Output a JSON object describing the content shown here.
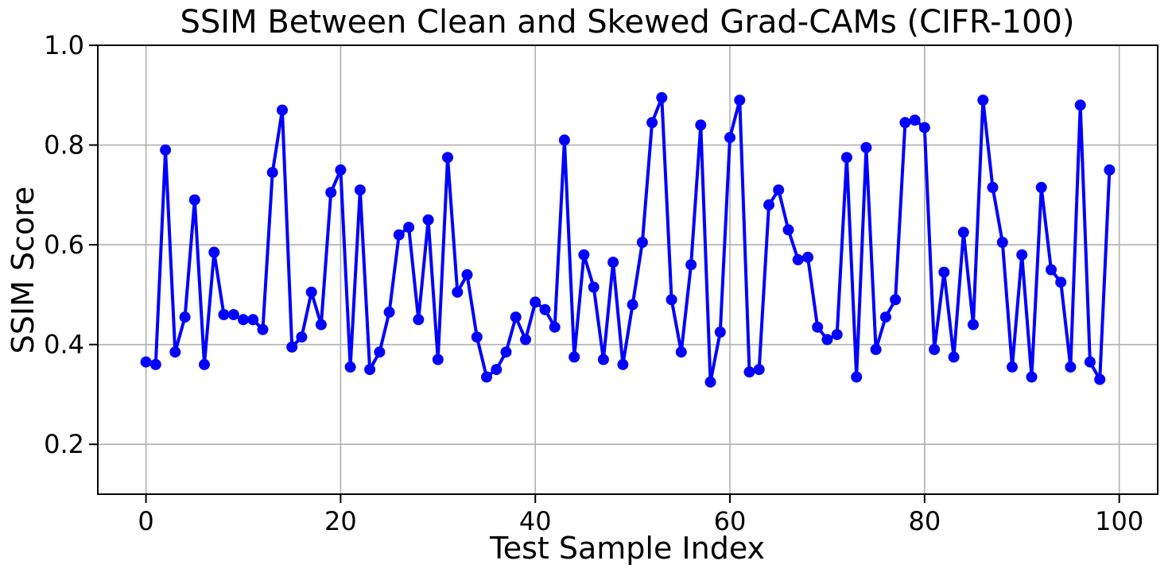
{
  "chart_data": {
    "type": "line",
    "title": "SSIM Between Clean and Skewed Grad-CAMs (CIFR-100)",
    "xlabel": "Test Sample Index",
    "ylabel": "SSIM Score",
    "x": [
      0,
      1,
      2,
      3,
      4,
      5,
      6,
      7,
      8,
      9,
      10,
      11,
      12,
      13,
      14,
      15,
      16,
      17,
      18,
      19,
      20,
      21,
      22,
      23,
      24,
      25,
      26,
      27,
      28,
      29,
      30,
      31,
      32,
      33,
      34,
      35,
      36,
      37,
      38,
      39,
      40,
      41,
      42,
      43,
      44,
      45,
      46,
      47,
      48,
      49,
      50,
      51,
      52,
      53,
      54,
      55,
      56,
      57,
      58,
      59,
      60,
      61,
      62,
      63,
      64,
      65,
      66,
      67,
      68,
      69,
      70,
      71,
      72,
      73,
      74,
      75,
      76,
      77,
      78,
      79,
      80,
      81,
      82,
      83,
      84,
      85,
      86,
      87,
      88,
      89,
      90,
      91,
      92,
      93,
      94,
      95,
      96,
      97,
      98,
      99
    ],
    "values": [
      0.365,
      0.36,
      0.79,
      0.385,
      0.455,
      0.69,
      0.36,
      0.585,
      0.46,
      0.46,
      0.45,
      0.45,
      0.43,
      0.745,
      0.87,
      0.395,
      0.415,
      0.505,
      0.44,
      0.705,
      0.75,
      0.355,
      0.71,
      0.35,
      0.385,
      0.465,
      0.62,
      0.635,
      0.45,
      0.65,
      0.37,
      0.775,
      0.505,
      0.54,
      0.415,
      0.335,
      0.35,
      0.385,
      0.455,
      0.41,
      0.485,
      0.47,
      0.435,
      0.81,
      0.375,
      0.58,
      0.515,
      0.37,
      0.565,
      0.36,
      0.48,
      0.605,
      0.845,
      0.895,
      0.49,
      0.385,
      0.56,
      0.84,
      0.325,
      0.425,
      0.815,
      0.89,
      0.345,
      0.35,
      0.68,
      0.71,
      0.63,
      0.57,
      0.575,
      0.435,
      0.41,
      0.42,
      0.775,
      0.335,
      0.795,
      0.39,
      0.455,
      0.49,
      0.845,
      0.85,
      0.835,
      0.39,
      0.545,
      0.375,
      0.625,
      0.44,
      0.89,
      0.715,
      0.605,
      0.355,
      0.58,
      0.335,
      0.715,
      0.55,
      0.525,
      0.355,
      0.88,
      0.365,
      0.33,
      0.75
    ],
    "xticks": [
      0,
      20,
      40,
      60,
      80,
      100
    ],
    "yticks": [
      0.2,
      0.4,
      0.6,
      0.8,
      1.0
    ],
    "xlim": [
      -4.95,
      103.95
    ],
    "ylim": [
      0.1,
      1.0
    ],
    "grid": true,
    "legend": "none",
    "line_color": "#0000ff",
    "marker": "circle",
    "grid_color": "#b0b0b0",
    "spine_color": "#000000",
    "background_color": "#ffffff"
  }
}
